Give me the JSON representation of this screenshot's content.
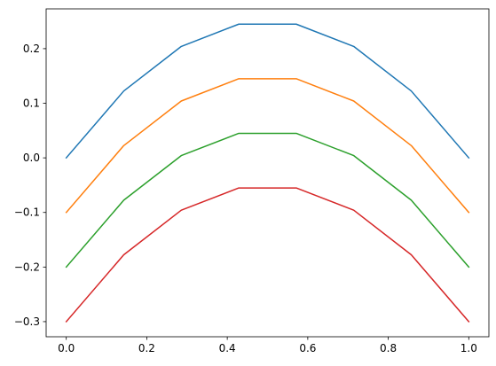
{
  "chart_data": {
    "type": "line",
    "title": "",
    "xlabel": "",
    "ylabel": "",
    "xlim": [
      -0.05,
      1.05
    ],
    "ylim": [
      -0.3277,
      0.2729
    ],
    "grid": false,
    "x_ticks": [
      0.0,
      0.2,
      0.4,
      0.6,
      0.8,
      1.0
    ],
    "x_tick_labels": [
      "0.0",
      "0.2",
      "0.4",
      "0.6",
      "0.8",
      "1.0"
    ],
    "y_ticks": [
      -0.3,
      -0.2,
      -0.1,
      0.0,
      0.1,
      0.2
    ],
    "y_tick_labels": [
      "−0.3",
      "−0.2",
      "−0.1",
      "0.0",
      "0.1",
      "0.2"
    ],
    "x": [
      0.0,
      0.142857,
      0.285714,
      0.428571,
      0.571429,
      0.714286,
      0.857143,
      1.0
    ],
    "series": [
      {
        "color": "#1f77b4",
        "values": [
          0.0,
          0.122449,
          0.204082,
          0.244898,
          0.244898,
          0.204082,
          0.122449,
          0.0
        ]
      },
      {
        "color": "#ff7f0e",
        "values": [
          -0.1,
          0.022449,
          0.104082,
          0.144898,
          0.144898,
          0.104082,
          0.022449,
          -0.1
        ]
      },
      {
        "color": "#2ca02c",
        "values": [
          -0.2,
          -0.077551,
          0.004082,
          0.044898,
          0.044898,
          0.004082,
          -0.077551,
          -0.2
        ]
      },
      {
        "color": "#d62728",
        "values": [
          -0.3,
          -0.177551,
          -0.095918,
          -0.055102,
          -0.055102,
          -0.095918,
          -0.177551,
          -0.3
        ]
      }
    ]
  }
}
